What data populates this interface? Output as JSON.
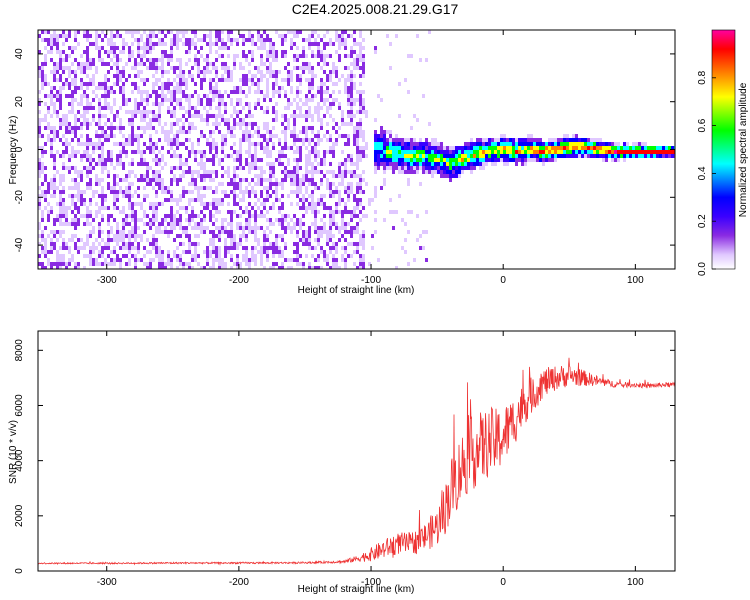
{
  "title": "C2E4.2025.008.21.29.G17",
  "chart_data": [
    {
      "type": "heatmap",
      "xlabel": "Height of straight line (km)",
      "ylabel": "Frequency (Hz)",
      "xlim": [
        -352,
        130
      ],
      "ylim": [
        -50,
        50
      ],
      "x_ticks": [
        -300,
        -200,
        -100,
        0,
        100
      ],
      "x_tick_labels": [
        "-300",
        "-200",
        "-100",
        "0",
        "100"
      ],
      "y_ticks": [
        -40,
        -20,
        0,
        20,
        40
      ],
      "y_tick_labels": [
        "-40",
        "-20",
        "0",
        "20",
        "40"
      ],
      "colorbar": {
        "label": "Normalized spectral amplitude",
        "range": [
          0,
          1
        ],
        "ticks": [
          0,
          0.2,
          0.4,
          0.6,
          0.8
        ],
        "tick_labels": [
          "0.0",
          "0.2",
          "0.4",
          "0.6",
          "0.8"
        ],
        "colormap": [
          "#ffffff",
          "#e0c8ff",
          "#8a2be2",
          "#3a00ff",
          "#0000ff",
          "#00ffff",
          "#00ff00",
          "#ffff00",
          "#ff8000",
          "#ff0000",
          "#ff00a0"
        ]
      },
      "ridge": {
        "x": [
          -115,
          -100,
          -90,
          -80,
          -70,
          -60,
          -50,
          -40,
          -30,
          -20,
          -10,
          0,
          10,
          20,
          30,
          40,
          50,
          60,
          70,
          80,
          90,
          100,
          110,
          120,
          130
        ],
        "frequency": [
          0,
          1,
          0,
          -1,
          -2,
          -2,
          -3,
          -5,
          -3,
          -1,
          0,
          1,
          0,
          1,
          0,
          1,
          2,
          2,
          1,
          0,
          0,
          0,
          0,
          0,
          0
        ]
      },
      "regions": {
        "noise_until": -105,
        "sparse_noise_until": -55,
        "strong_signal_from": -100
      }
    },
    {
      "type": "line",
      "xlabel": "Height of straight line (km)",
      "ylabel": "SNR (10 * v/v)",
      "xlim": [
        -352,
        130
      ],
      "ylim": [
        0,
        8700
      ],
      "x_ticks": [
        -300,
        -200,
        -100,
        0,
        100
      ],
      "x_tick_labels": [
        "-300",
        "-200",
        "-100",
        "0",
        "100"
      ],
      "y_ticks": [
        0,
        2000,
        4000,
        6000,
        8000
      ],
      "y_tick_labels": [
        "0",
        "2000",
        "4000",
        "6000",
        "8000"
      ],
      "series": [
        {
          "color": "#ee3333",
          "x": [
            -352,
            -300,
            -250,
            -200,
            -150,
            -120,
            -110,
            -100,
            -90,
            -80,
            -70,
            -60,
            -50,
            -45,
            -40,
            -35,
            -30,
            -25,
            -20,
            -15,
            -10,
            -5,
            0,
            5,
            10,
            15,
            20,
            25,
            30,
            40,
            50,
            60,
            70,
            80,
            90,
            100,
            110,
            120,
            130
          ],
          "y": [
            280,
            280,
            290,
            290,
            300,
            340,
            450,
            600,
            800,
            1000,
            1000,
            1200,
            1600,
            2100,
            2900,
            3400,
            3900,
            4200,
            4400,
            4500,
            4700,
            4700,
            4900,
            5200,
            5600,
            6000,
            6300,
            6500,
            6800,
            7000,
            7100,
            7000,
            6900,
            6800,
            6750,
            6750,
            6700,
            6750,
            6750
          ],
          "band": [
            50,
            50,
            60,
            60,
            60,
            100,
            250,
            500,
            700,
            800,
            800,
            1000,
            1400,
            1800,
            2300,
            2500,
            2600,
            2700,
            2700,
            2600,
            2500,
            2400,
            2200,
            2000,
            1800,
            1600,
            1400,
            1200,
            1100,
            900,
            800,
            600,
            400,
            280,
            200,
            180,
            170,
            170,
            170
          ]
        }
      ]
    }
  ]
}
